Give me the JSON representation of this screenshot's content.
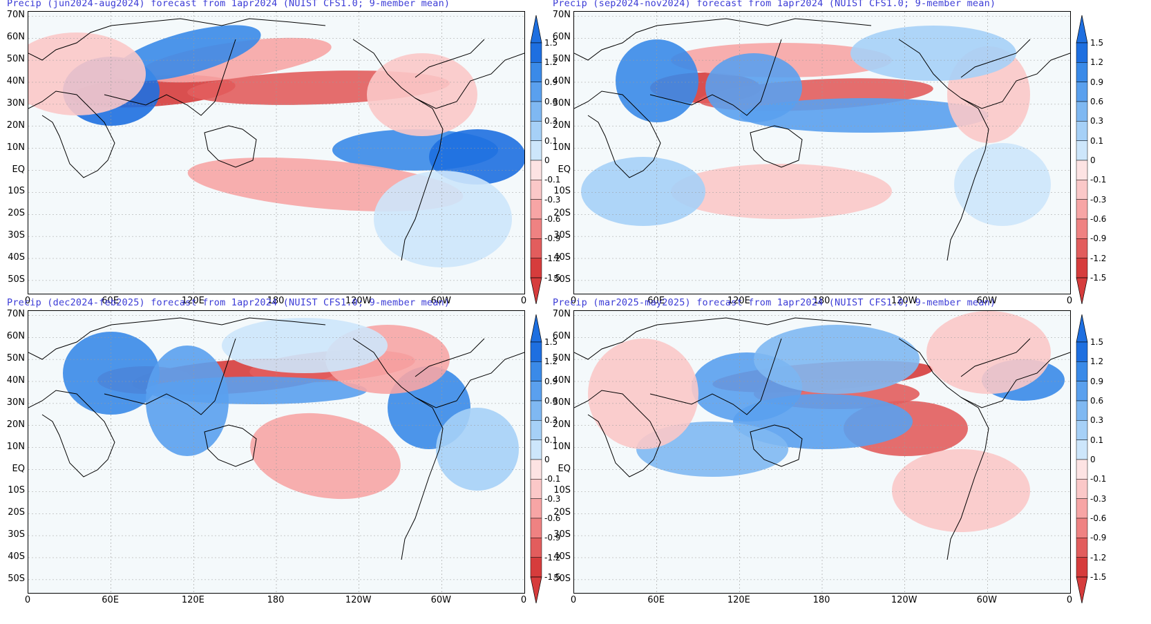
{
  "panels": [
    {
      "title": "Precip (jun2024-aug2024) forecast from 1apr2024 (NUIST CFS1.0; 9-member mean)"
    },
    {
      "title": "Precip (sep2024-nov2024) forecast from 1apr2024 (NUIST CFS1.0; 9-member mean)"
    },
    {
      "title": "Precip (dec2024-feb2025) forecast from 1apr2024 (NUIST CFS1.0; 9-member mean)"
    },
    {
      "title": "Precip (mar2025-may2025) forecast from 1apr2024 (NUIST CFS1.0; 9-member mean)"
    }
  ],
  "lat_labels": [
    "70N",
    "60N",
    "50N",
    "40N",
    "30N",
    "20N",
    "10N",
    "EQ",
    "10S",
    "20S",
    "30S",
    "40S",
    "50S"
  ],
  "lon_labels": [
    "0",
    "60E",
    "120E",
    "180",
    "120W",
    "60W",
    "0"
  ],
  "colorbar": {
    "labels": [
      "1.5",
      "1.2",
      "0.9",
      "0.6",
      "0.3",
      "0.1",
      "0",
      "-0.1",
      "-0.3",
      "-0.6",
      "-0.9",
      "-1.2",
      "-1.5"
    ],
    "colors": [
      "#1e6fe0",
      "#3a8ae8",
      "#5aa0ee",
      "#7fb8f2",
      "#a6d0f7",
      "#cde6fb",
      "#eaf6fb",
      "#fde3e3",
      "#fbc8c8",
      "#f7a5a5",
      "#ef8282",
      "#e25d5d",
      "#d63c3c"
    ]
  }
}
